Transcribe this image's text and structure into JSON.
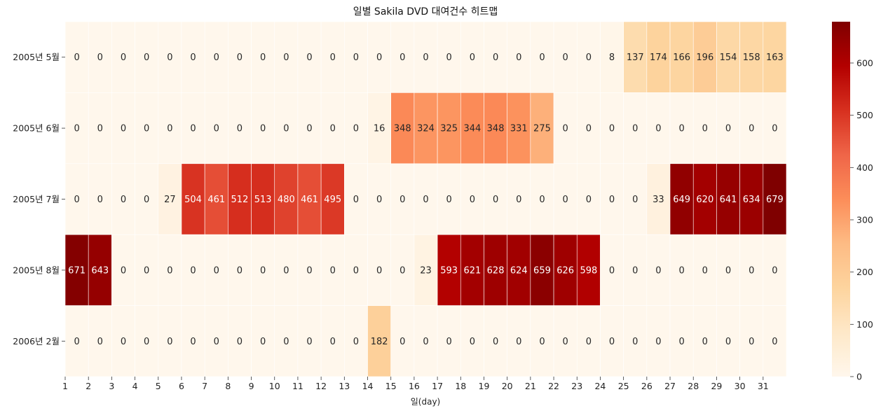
{
  "chart_data": {
    "type": "heatmap",
    "title": "일별 Sakila DVD 대여건수 히트맵",
    "xlabel": "일(day)",
    "ylabel": "",
    "x_ticks": [
      "1",
      "2",
      "3",
      "4",
      "5",
      "6",
      "7",
      "8",
      "9",
      "10",
      "11",
      "12",
      "13",
      "14",
      "15",
      "16",
      "17",
      "18",
      "19",
      "20",
      "21",
      "22",
      "23",
      "24",
      "25",
      "26",
      "27",
      "28",
      "29",
      "30",
      "31"
    ],
    "rows": [
      "2005년 5월",
      "2005년 6월",
      "2005년 7월",
      "2005년 8월",
      "2006년 2월"
    ],
    "values": [
      [
        0,
        0,
        0,
        0,
        0,
        0,
        0,
        0,
        0,
        0,
        0,
        0,
        0,
        0,
        0,
        0,
        0,
        0,
        0,
        0,
        0,
        0,
        0,
        8,
        137,
        174,
        166,
        196,
        154,
        158,
        163
      ],
      [
        0,
        0,
        0,
        0,
        0,
        0,
        0,
        0,
        0,
        0,
        0,
        0,
        0,
        16,
        348,
        324,
        325,
        344,
        348,
        331,
        275,
        0,
        0,
        0,
        0,
        0,
        0,
        0,
        0,
        0,
        0
      ],
      [
        0,
        0,
        0,
        0,
        27,
        504,
        461,
        512,
        513,
        480,
        461,
        495,
        0,
        0,
        0,
        0,
        0,
        0,
        0,
        0,
        0,
        0,
        0,
        0,
        0,
        33,
        649,
        620,
        641,
        634,
        679
      ],
      [
        671,
        643,
        0,
        0,
        0,
        0,
        0,
        0,
        0,
        0,
        0,
        0,
        0,
        0,
        0,
        23,
        593,
        621,
        628,
        624,
        659,
        626,
        598,
        0,
        0,
        0,
        0,
        0,
        0,
        0,
        0
      ],
      [
        0,
        0,
        0,
        0,
        0,
        0,
        0,
        0,
        0,
        0,
        0,
        0,
        0,
        182,
        0,
        0,
        0,
        0,
        0,
        0,
        0,
        0,
        0,
        0,
        0,
        0,
        0,
        0,
        0,
        0,
        0
      ]
    ],
    "colormap": "OrRd",
    "vmin": 0,
    "vmax": 679,
    "colorbar_ticks": [
      0,
      100,
      200,
      300,
      400,
      500,
      600
    ],
    "annotate": true,
    "grid": false
  }
}
